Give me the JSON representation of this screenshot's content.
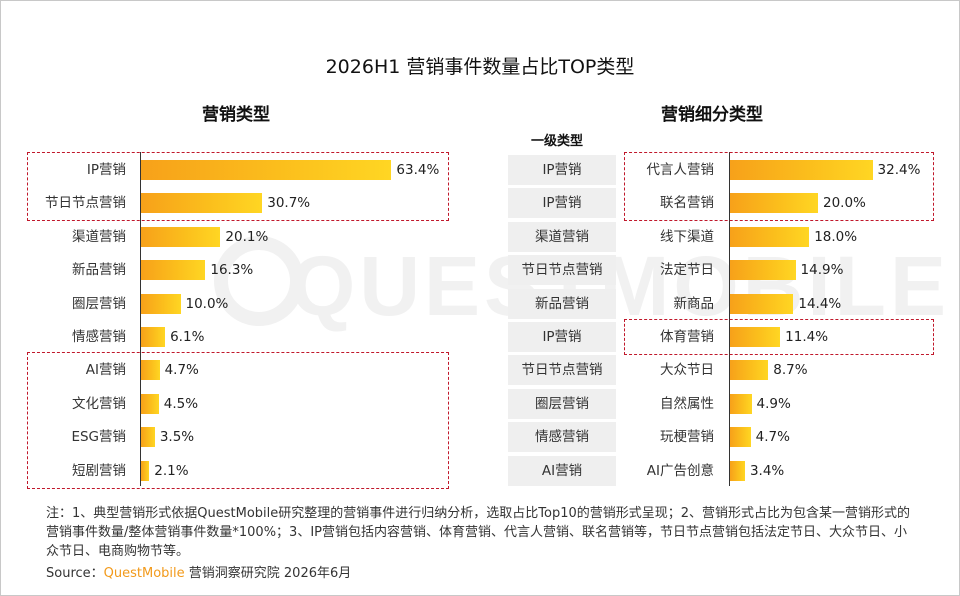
{
  "title": "2026H1 营销事件数量占比TOP类型",
  "watermark": "QUESTMOBILE",
  "left_subtitle": "营销类型",
  "right_subtitle": "营销细分类型",
  "level1_header": "一级类型",
  "level1_types": [
    "IP营销",
    "IP营销",
    "渠道营销",
    "节日节点营销",
    "新品营销",
    "IP营销",
    "节日节点营销",
    "圈层营销",
    "情感营销",
    "AI营销"
  ],
  "note": "注：1、典型营销形式依据QuestMobile研究整理的营销事件进行归纳分析，选取占比Top10的营销形式呈现；2、营销形式占比为包含某一营销形式的营销事件数量/整体营销事件数量*100%；3、IP营销包括内容营销、体育营销、代言人营销、联名营销等，节日节点营销包括法定节日、大众节日、小众节日、电商购物节等。",
  "source_prefix": "Source：",
  "source_brand": "QuestMobile",
  "source_suffix": "营销洞察研究院 2026年6月",
  "colors": {
    "bar_start": "#f7a11a",
    "bar_end": "#ffd623",
    "highlight_box": "#c0182b",
    "brand": "#f29a1b"
  },
  "chart_data": [
    {
      "type": "bar",
      "orientation": "horizontal",
      "title": "营销类型",
      "unit": "%",
      "categories": [
        "IP营销",
        "节日节点营销",
        "渠道营销",
        "新品营销",
        "圈层营销",
        "情感营销",
        "AI营销",
        "文化营销",
        "ESG营销",
        "短剧营销"
      ],
      "values": [
        63.4,
        30.7,
        20.1,
        16.3,
        10.0,
        6.1,
        4.7,
        4.5,
        3.5,
        2.1
      ],
      "labels": [
        "63.4%",
        "30.7%",
        "20.1%",
        "16.3%",
        "10.0%",
        "6.1%",
        "4.7%",
        "4.5%",
        "3.5%",
        "2.1%"
      ],
      "highlighted_groups": [
        [
          0,
          1
        ],
        [
          6,
          9
        ]
      ],
      "xlim": [
        0,
        70
      ]
    },
    {
      "type": "bar",
      "orientation": "horizontal",
      "title": "营销细分类型",
      "unit": "%",
      "categories": [
        "代言人营销",
        "联名营销",
        "线下渠道",
        "法定节日",
        "新商品",
        "体育营销",
        "大众节日",
        "自然属性",
        "玩梗营销",
        "AI广告创意"
      ],
      "values": [
        32.4,
        20.0,
        18.0,
        14.9,
        14.4,
        11.4,
        8.7,
        4.9,
        4.7,
        3.4
      ],
      "labels": [
        "32.4%",
        "20.0%",
        "18.0%",
        "14.9%",
        "14.4%",
        "11.4%",
        "8.7%",
        "4.9%",
        "4.7%",
        "3.4%"
      ],
      "highlighted_groups": [
        [
          0,
          1
        ],
        [
          5,
          5
        ]
      ],
      "xlim": [
        0,
        35
      ]
    }
  ]
}
